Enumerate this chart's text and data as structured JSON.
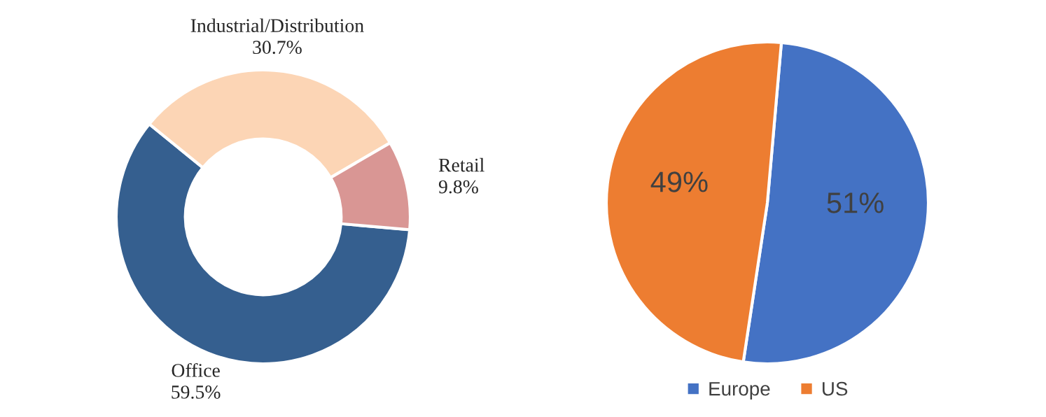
{
  "chart_data": [
    {
      "type": "donut",
      "categories": [
        "Office",
        "Industrial/Distribution",
        "Retail"
      ],
      "values": [
        59.5,
        30.7,
        9.8
      ],
      "value_labels": [
        "59.5%",
        "30.7%",
        "9.8%"
      ],
      "colors": [
        "#355f8f",
        "#fcd5b5",
        "#d99694"
      ],
      "legend": false
    },
    {
      "type": "pie",
      "categories": [
        "Europe",
        "US"
      ],
      "values": [
        51,
        49
      ],
      "value_labels": [
        "51%",
        "49%"
      ],
      "colors": [
        "#4472c4",
        "#ed7d31"
      ],
      "legend": "bottom"
    }
  ]
}
